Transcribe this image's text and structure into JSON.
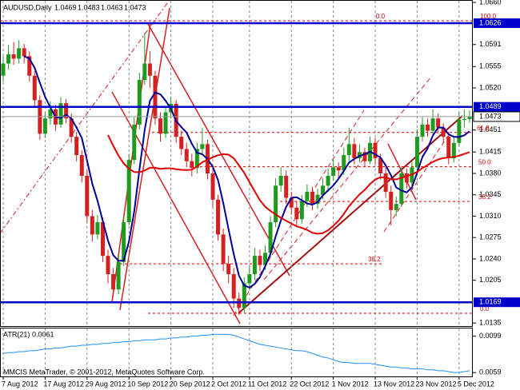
{
  "chart_data": {
    "type": "candlestick",
    "title": "AUDUSD,Daily",
    "categories": [
      "7 Aug 2012",
      null,
      null,
      null,
      null,
      null,
      null,
      null,
      "17 Aug 2012",
      null,
      null,
      null,
      null,
      null,
      null,
      null,
      "29 Aug 2012",
      null,
      null,
      null,
      null,
      null,
      null,
      null,
      "10 Sep 2012",
      null,
      null,
      null,
      null,
      null,
      null,
      null,
      "20 Sep 2012",
      null,
      null,
      null,
      null,
      null,
      null,
      null,
      "2 Oct 2012",
      null,
      null,
      null,
      null,
      null,
      null,
      "11 Oct 2012",
      null,
      null,
      null,
      null,
      null,
      null,
      null,
      "22 Oct 2012",
      null,
      null,
      null,
      null,
      null,
      null,
      null,
      "1 Nov 2012",
      null,
      null,
      null,
      null,
      null,
      null,
      null,
      "13 Nov 2012",
      null,
      null,
      null,
      null,
      null,
      null,
      null,
      "23 Nov 2012",
      null,
      null,
      null,
      null,
      null,
      null,
      null,
      "5 Dec 2012",
      null,
      null
    ],
    "open": [
      1.054,
      1.056,
      1.0575,
      1.0568,
      1.0585,
      1.0572,
      1.054,
      1.05,
      1.0445,
      1.047,
      1.0485,
      1.046,
      1.0495,
      1.047,
      1.044,
      1.041,
      1.0376,
      1.031,
      1.028,
      1.03,
      1.0245,
      1.0215,
      1.019,
      1.0235,
      1.03,
      1.0402,
      1.046,
      1.0533,
      1.056,
      1.054,
      1.047,
      1.0445,
      1.048,
      1.0494,
      1.044,
      1.042,
      1.04,
      1.0389,
      1.042,
      1.0428,
      1.038,
      1.0337,
      1.028,
      1.0232,
      1.0215,
      1.0175,
      1.016,
      1.02,
      1.0215,
      1.0245,
      1.023,
      1.025,
      1.03,
      1.036,
      1.0376,
      1.034,
      1.0324,
      1.0305,
      1.0335,
      1.035,
      1.033,
      1.0345,
      1.036,
      1.0376,
      1.039,
      1.0385,
      1.041,
      1.0428,
      1.0405,
      1.0415,
      1.04,
      1.043,
      1.0405,
      1.038,
      1.035,
      1.032,
      1.033,
      1.038,
      1.0365,
      1.039,
      1.044,
      1.046,
      1.045,
      1.047,
      1.0455,
      1.044,
      1.0405,
      1.043,
      1.0468,
      1.0469
    ],
    "high": [
      1.0572,
      1.059,
      1.0595,
      1.0598,
      1.0592,
      1.058,
      1.0548,
      1.0508,
      1.048,
      1.0498,
      1.0492,
      1.0505,
      1.0502,
      1.0478,
      1.0448,
      1.0418,
      1.0385,
      1.032,
      1.0312,
      1.0308,
      1.0255,
      1.0225,
      1.0245,
      1.031,
      1.0412,
      1.0472,
      1.0545,
      1.061,
      1.058,
      1.0548,
      1.048,
      1.049,
      1.0505,
      1.05,
      1.045,
      1.043,
      1.0412,
      1.043,
      1.0455,
      1.0435,
      1.0388,
      1.0345,
      1.029,
      1.0245,
      1.0225,
      1.0185,
      1.021,
      1.0228,
      1.0258,
      1.0255,
      1.0262,
      1.031,
      1.0372,
      1.039,
      1.0385,
      1.035,
      1.0335,
      1.0345,
      1.0362,
      1.0358,
      1.0355,
      1.0372,
      1.0388,
      1.0402,
      1.0398,
      1.0422,
      1.0455,
      1.0438,
      1.0428,
      1.0422,
      1.044,
      1.0438,
      1.0412,
      1.039,
      1.036,
      1.0342,
      1.039,
      1.0388,
      1.04,
      1.0452,
      1.0472,
      1.047,
      1.0485,
      1.0478,
      1.0462,
      1.0448,
      1.044,
      1.048,
      1.0485,
      1.0483
    ],
    "low": [
      1.053,
      1.055,
      1.0558,
      1.056,
      1.056,
      1.053,
      1.049,
      1.0435,
      1.0438,
      1.046,
      1.045,
      1.0455,
      1.0462,
      1.043,
      1.04,
      1.0365,
      1.03,
      1.0268,
      1.0272,
      1.0235,
      1.02,
      1.0178,
      1.0182,
      1.0228,
      1.0295,
      1.0395,
      1.0452,
      1.0525,
      1.052,
      1.046,
      1.0432,
      1.0438,
      1.047,
      1.043,
      1.041,
      1.039,
      1.0375,
      1.038,
      1.041,
      1.037,
      1.0325,
      1.027,
      1.022,
      1.02,
      1.016,
      1.0148,
      1.0152,
      1.019,
      1.0205,
      1.022,
      1.0222,
      1.0242,
      1.0292,
      1.035,
      1.033,
      1.0312,
      1.0292,
      1.0298,
      1.0325,
      1.032,
      1.0322,
      1.0338,
      1.035,
      1.0368,
      1.0372,
      1.0378,
      1.04,
      1.0395,
      1.0398,
      1.039,
      1.0395,
      1.0395,
      1.037,
      1.034,
      1.0295,
      1.031,
      1.0325,
      1.0355,
      1.0358,
      1.0385,
      1.0432,
      1.044,
      1.0442,
      1.0445,
      1.043,
      1.0395,
      1.0398,
      1.0425,
      1.0455,
      1.0463
    ],
    "close": [
      1.056,
      1.0575,
      1.0568,
      1.0585,
      1.0572,
      1.054,
      1.05,
      1.0445,
      1.047,
      1.0485,
      1.046,
      1.0495,
      1.047,
      1.044,
      1.041,
      1.0376,
      1.031,
      1.028,
      1.03,
      1.0245,
      1.0215,
      1.019,
      1.0235,
      1.03,
      1.0402,
      1.046,
      1.0533,
      1.056,
      1.054,
      1.047,
      1.0445,
      1.048,
      1.0494,
      1.044,
      1.042,
      1.04,
      1.0389,
      1.042,
      1.0428,
      1.038,
      1.0337,
      1.028,
      1.0232,
      1.0215,
      1.0175,
      1.016,
      1.02,
      1.0215,
      1.0245,
      1.023,
      1.025,
      1.03,
      1.036,
      1.0376,
      1.034,
      1.0324,
      1.0305,
      1.0335,
      1.035,
      1.033,
      1.0345,
      1.036,
      1.0376,
      1.039,
      1.0385,
      1.041,
      1.0428,
      1.0405,
      1.0415,
      1.04,
      1.043,
      1.0405,
      1.038,
      1.035,
      1.032,
      1.033,
      1.038,
      1.0365,
      1.039,
      1.044,
      1.046,
      1.045,
      1.047,
      1.0455,
      1.044,
      1.0405,
      1.043,
      1.0468,
      1.0469,
      1.0473
    ],
    "up_color": "#1f9a1f",
    "down_color": "#d42020",
    "ylim": [
      1.013,
      1.0664
    ],
    "yticks": [
      {
        "value": 1.066,
        "label": "1.0660"
      },
      1.0591,
      1.0555,
      {
        "value": 1.052,
        "label": "1.0520"
      },
      1.0451,
      1.0415,
      {
        "value": 1.038,
        "label": "1.0380"
      },
      1.0345,
      {
        "value": 1.031,
        "label": "1.0310"
      },
      1.0275,
      {
        "value": 1.024,
        "label": "1.0240"
      },
      1.0205,
      1.0135
    ],
    "levels": [
      1.0626,
      1.0489,
      1.0169
    ],
    "level_color": "#0000cc",
    "moving_averages": [
      {
        "period": 5,
        "color": "#000099"
      },
      {
        "period": 21,
        "color": "#e00000"
      }
    ],
    "fibo": [
      {
        "label": "0.0",
        "value": 1.063
      },
      {
        "label": "100.0",
        "value": 1.063
      },
      {
        "label": "61.8",
        "value": 1.0447
      },
      {
        "label": "50.0",
        "value": 1.0391
      },
      {
        "label": "38.2",
        "value": 1.0334
      },
      {
        "label": "38.2",
        "value": 1.0232
      },
      {
        "label": "0.0",
        "value": 1.0151
      }
    ],
    "fibo_color": "#e00000",
    "grid": true,
    "atr": {
      "name": "ATR(21)",
      "color": "#1e90ff",
      "values": [
        0.008,
        0.0081,
        0.0081,
        0.0082,
        0.0082,
        0.0083,
        0.0083,
        0.0084,
        0.0085,
        0.0085,
        0.0086,
        0.0086,
        0.0087,
        0.0088,
        0.0088,
        0.0089,
        0.0089,
        0.009,
        0.009,
        0.0091,
        0.0091,
        0.0092,
        0.0092,
        0.0093,
        0.0093,
        0.0094,
        0.0094,
        0.0095,
        0.0095,
        0.0095,
        0.0096,
        0.0096,
        0.0097,
        0.0097,
        0.0098,
        0.0098,
        0.0099,
        0.0099,
        0.01,
        0.01,
        0.0101,
        0.0101,
        0.0101,
        0.0101,
        0.01,
        0.0098,
        0.0096,
        0.0094,
        0.0092,
        0.009,
        0.0089,
        0.0088,
        0.0087,
        0.0086,
        0.0085,
        0.0084,
        0.0083,
        0.0083,
        0.0082,
        0.008,
        0.0078,
        0.0076,
        0.0075,
        0.0073,
        0.0071,
        0.007,
        0.007,
        0.0069,
        0.0069,
        0.0069,
        0.0069,
        0.0068,
        0.0067,
        0.0066,
        0.0065,
        0.0065,
        0.0064,
        0.0064,
        0.0063,
        0.0063,
        0.0063,
        0.0062,
        0.0062,
        0.0061,
        0.0061,
        0.006,
        0.0059,
        0.0059,
        0.006,
        0.0061
      ],
      "ylim": [
        0.00547,
        0.01075
      ],
      "yticks": [
        0.0099,
        0.0059
      ]
    },
    "footer": "MMCIS MetaTrader, © 2001-2012, MetaQuotes Software Corp."
  }
}
